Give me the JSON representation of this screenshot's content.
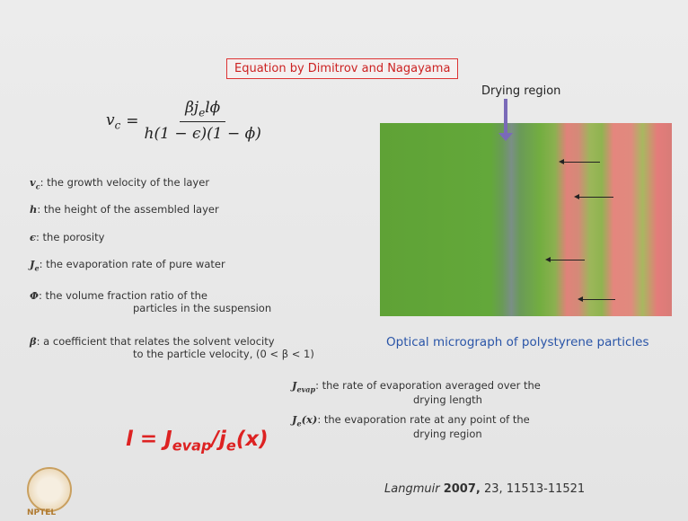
{
  "title": "Equation by Dimitrov and Nagayama",
  "equation": {
    "lhs": "v",
    "lhs_sub": "c",
    "equals": "=",
    "numerator": {
      "a": "βj",
      "sub": "e",
      "b": "lϕ"
    },
    "denominator": "h(1 − ϵ)(1 − ϕ)"
  },
  "definitions": [
    {
      "symbol": "v",
      "sub": "c",
      "lines": [
        ": the growth velocity of the layer"
      ]
    },
    {
      "symbol": "h",
      "lines": [
        ": the height of the assembled layer"
      ]
    },
    {
      "symbol": "ϵ",
      "lines": [
        ": the porosity"
      ]
    },
    {
      "symbol": "J",
      "sub": "e",
      "lines": [
        ": the evaporation rate of pure water"
      ]
    },
    {
      "symbol": "Φ",
      "lines": [
        ": the volume fraction ratio of the",
        "particles in the suspension"
      ]
    },
    {
      "symbol": "β",
      "lines": [
        ": a coefficient that relates the solvent velocity",
        "to the particle velocity, (0 < β < 1)"
      ]
    }
  ],
  "ratio": {
    "lhs": "l = J",
    "sub1": "evap",
    "mid": "/j",
    "sub2": "e",
    "end": "(x)"
  },
  "ratio_definitions": [
    {
      "symbol": "J",
      "sub": "evap",
      "lines": [
        ": the rate of evaporation averaged over the",
        "drying length"
      ]
    },
    {
      "symbol": "J",
      "sub": "e",
      "after": "(x)",
      "lines": [
        ": the evaporation rate at any point of the",
        "drying region"
      ]
    }
  ],
  "image": {
    "label": "Drying region",
    "caption": "Optical micrograph of polystyrene particles"
  },
  "citation": {
    "journal": "Langmuir",
    "year": "2007,",
    "rest": "23, 11513-11521"
  },
  "logo": {
    "text": "NPTEL"
  }
}
